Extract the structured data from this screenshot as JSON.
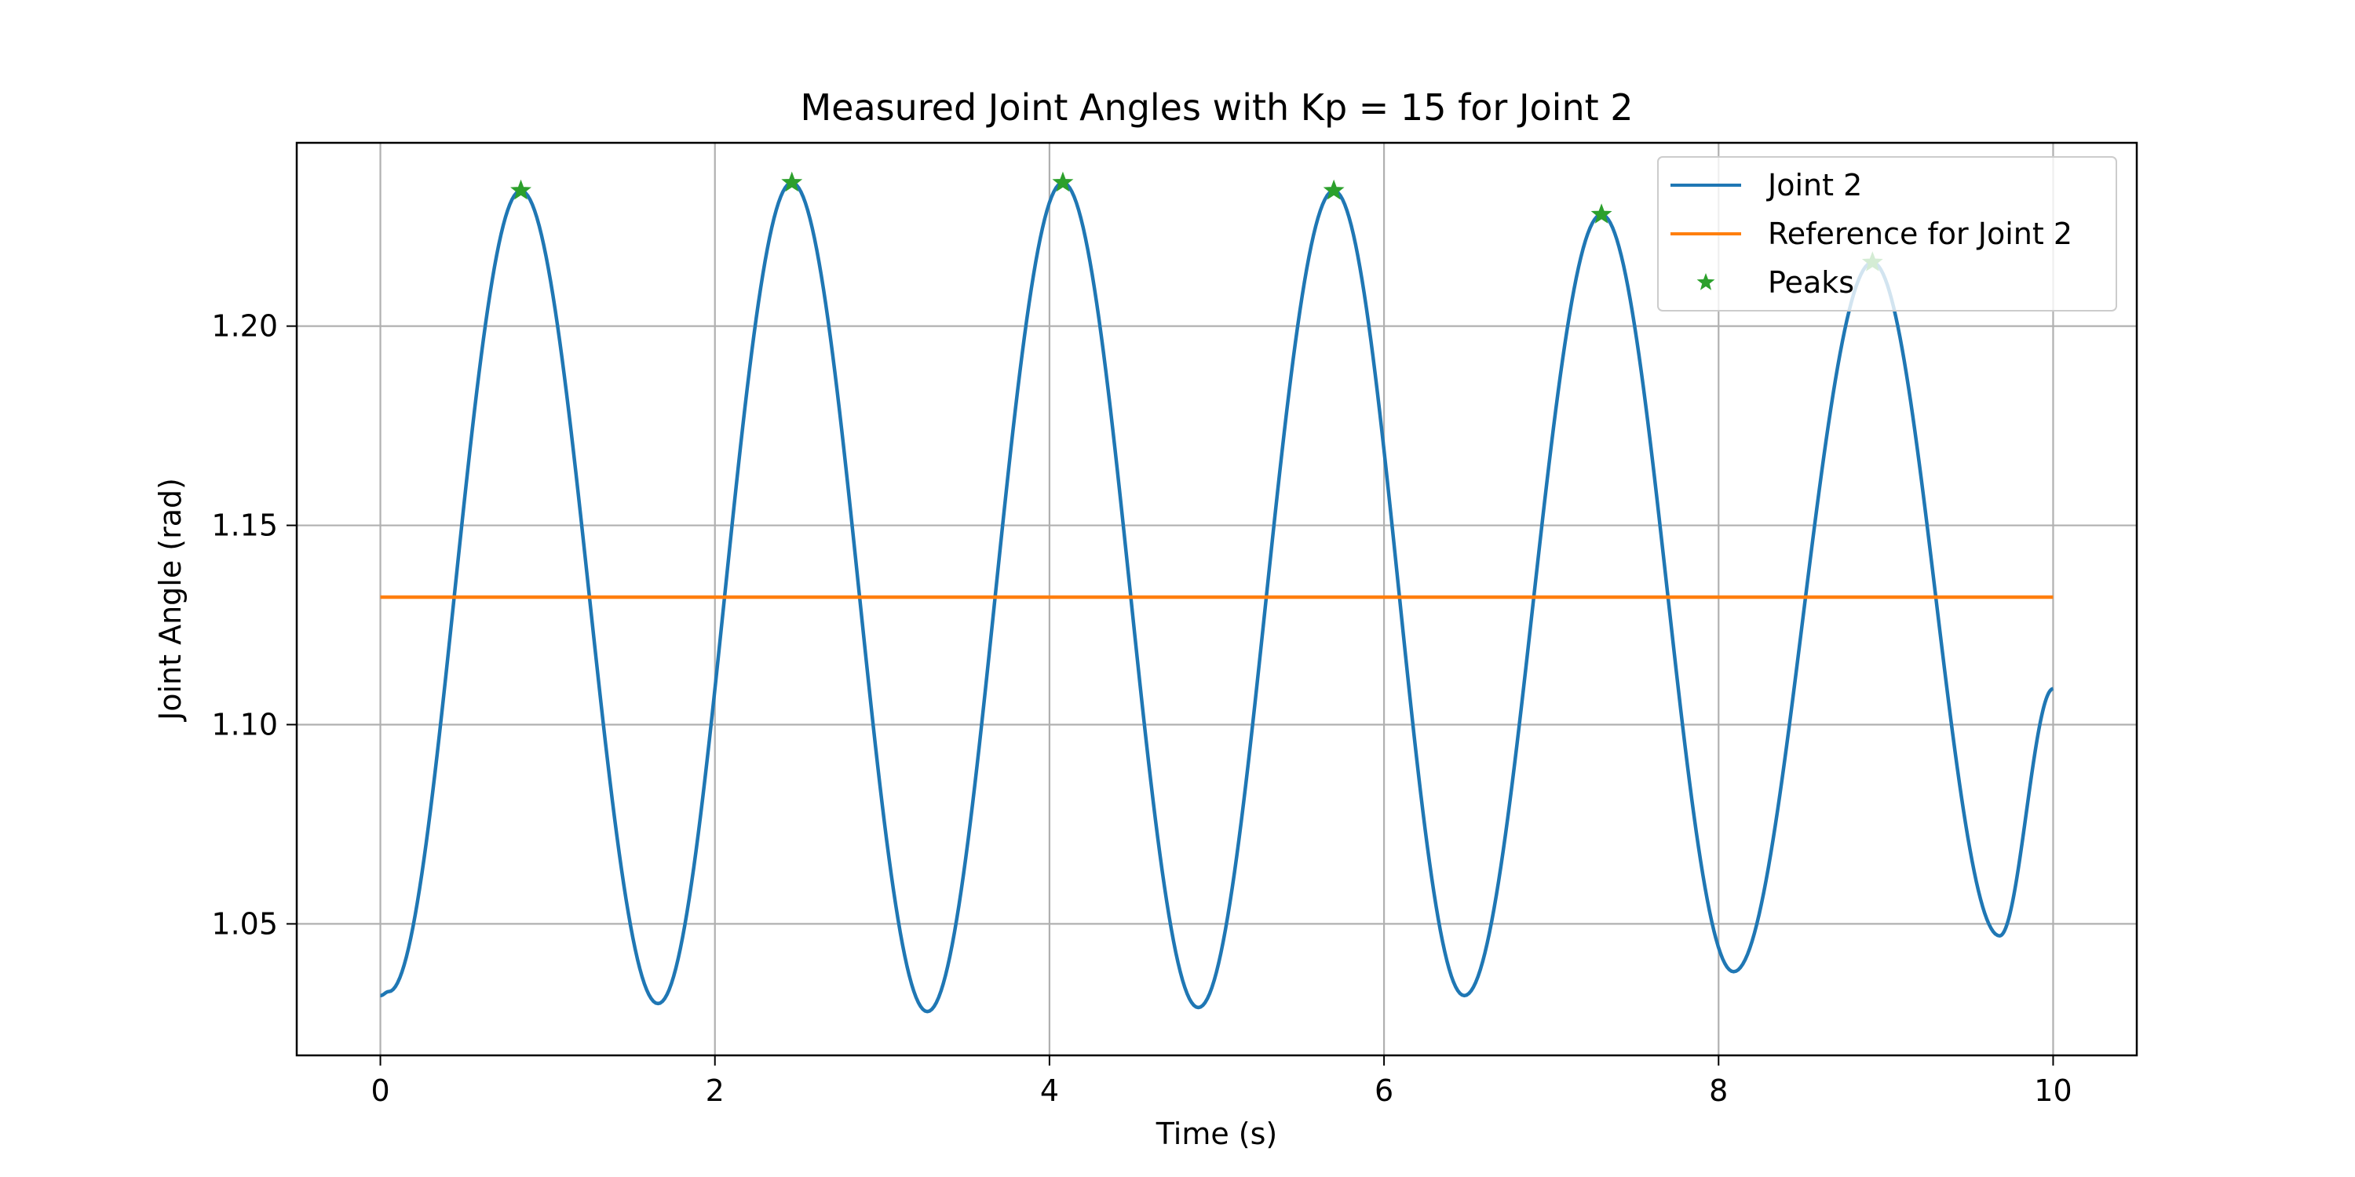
{
  "chart_data": {
    "type": "line",
    "title": "Measured Joint Angles with Kp = 15 for Joint 2",
    "xlabel": "Time (s)",
    "ylabel": "Joint Angle (rad)",
    "xlim": [
      -0.5,
      10.5
    ],
    "ylim": [
      1.017,
      1.246
    ],
    "xticks": [
      0,
      2,
      4,
      6,
      8,
      10
    ],
    "xtick_labels": [
      "0",
      "2",
      "4",
      "6",
      "8",
      "10"
    ],
    "yticks": [
      1.05,
      1.1,
      1.15,
      1.2
    ],
    "ytick_labels": [
      "1.05",
      "1.10",
      "1.15",
      "1.20"
    ],
    "grid": true,
    "legend_position": "top-right",
    "series": [
      {
        "name": "Joint 2",
        "kind": "line",
        "color": "#1f77b4",
        "x": [
          0.0,
          0.05,
          0.84,
          1.66,
          2.46,
          3.27,
          4.08,
          4.89,
          5.7,
          6.48,
          7.3,
          8.09,
          8.92,
          9.68,
          10.0
        ],
        "y": [
          1.032,
          1.033,
          1.234,
          1.03,
          1.236,
          1.028,
          1.236,
          1.029,
          1.234,
          1.032,
          1.228,
          1.038,
          1.216,
          1.047,
          1.109
        ]
      },
      {
        "name": "Reference for Joint 2",
        "kind": "line",
        "color": "#ff7f0e",
        "x": [
          0.0,
          10.0
        ],
        "y": [
          1.132,
          1.132
        ]
      },
      {
        "name": "Peaks",
        "kind": "marker",
        "marker": "star",
        "color": "#2ca02c",
        "x": [
          0.84,
          2.46,
          4.08,
          5.7,
          7.3,
          8.92
        ],
        "y": [
          1.234,
          1.236,
          1.236,
          1.234,
          1.228,
          1.216
        ]
      }
    ]
  }
}
